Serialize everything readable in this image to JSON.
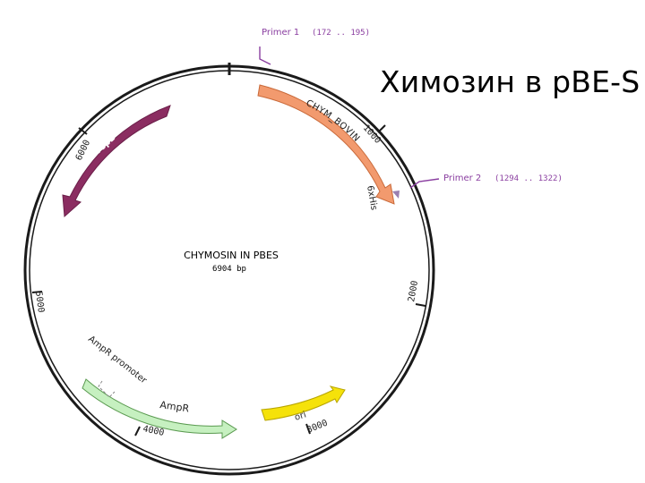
{
  "slide": {
    "title": "Химозин в pBE-S"
  },
  "plasmid": {
    "name": "CHYMOSIN IN PBES",
    "size_label": "6904 bp",
    "length_bp": 6904,
    "tick_labels": [
      {
        "bp": 1000,
        "text": "1000"
      },
      {
        "bp": 2000,
        "text": "2000"
      },
      {
        "bp": 3000,
        "text": "3000"
      },
      {
        "bp": 4000,
        "text": "4000"
      },
      {
        "bp": 5000,
        "text": "5000"
      },
      {
        "bp": 6000,
        "text": "6000"
      }
    ],
    "features": [
      {
        "id": "chym",
        "label": "CHYM_BOVIN",
        "color": "#f29a6e"
      },
      {
        "id": "repb",
        "label": "repB",
        "color": "#8b2d61"
      },
      {
        "id": "ori",
        "label": "ori",
        "color": "#f5e20a"
      },
      {
        "id": "ampr",
        "label": "AmpR",
        "color": "#c6f0c0"
      },
      {
        "id": "ampr-promoter",
        "label": "AmpR promoter",
        "color": "#ffffff"
      },
      {
        "id": "his",
        "label": "6xHis",
        "color": "#9a7fb0"
      }
    ],
    "primers": [
      {
        "label": "Primer 1",
        "range": "(172 .. 195)",
        "color": "#8a3ea0"
      },
      {
        "label": "Primer 2",
        "range": "(1294 .. 1322)",
        "color": "#8a3ea0"
      }
    ]
  }
}
